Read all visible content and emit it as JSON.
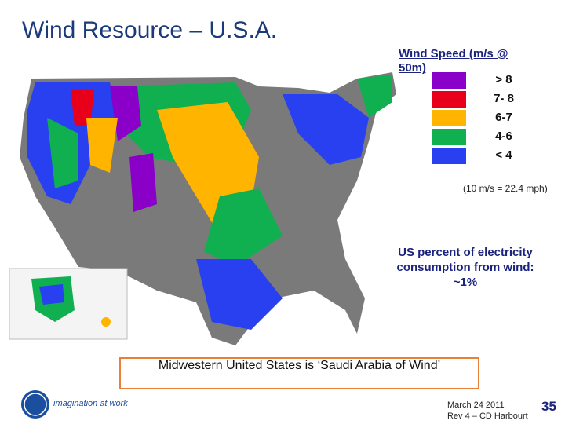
{
  "header": {
    "title": "Wind Resource – U.S.A."
  },
  "legend": {
    "title": "Wind Speed (m/s @ 50m)",
    "items": [
      {
        "label": "> 8",
        "color": "#8a00c8"
      },
      {
        "label": "7- 8",
        "color": "#e8001a"
      },
      {
        "label": "6-7",
        "color": "#ffb400"
      },
      {
        "label": "4-6",
        "color": "#10b050"
      },
      {
        "label": "< 4",
        "color": "#2840f0"
      }
    ],
    "note": "(10 m/s = 22.4 mph)"
  },
  "callout": {
    "lines": [
      "US percent of electricity",
      "consumption from wind:",
      "~1%"
    ]
  },
  "banner": {
    "text": "Midwestern United States is ‘Saudi Arabia of Wind’"
  },
  "footer": {
    "tagline": "imagination at work",
    "date": "March 24 2011",
    "revision": "Rev 4 – CD Harbourt",
    "page": "35"
  }
}
